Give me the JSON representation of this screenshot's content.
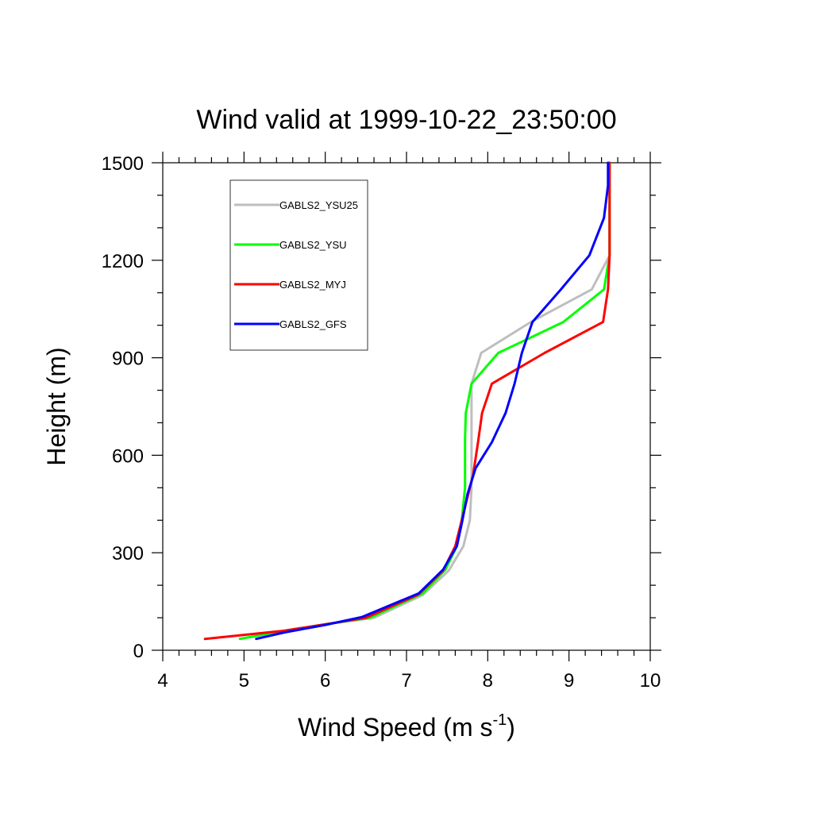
{
  "chart_data": {
    "type": "line",
    "title": "Wind valid at 1999-10-22_23:50:00",
    "xlabel": {
      "main": "Wind Speed (m s",
      "superscript": "-1",
      "close": ")"
    },
    "ylabel": "Height (m)",
    "xlim": [
      4,
      10
    ],
    "ylim": [
      0,
      1500
    ],
    "x_ticks": [
      4,
      5,
      6,
      7,
      8,
      9,
      10
    ],
    "x_tick_labels": [
      "4",
      "5",
      "6",
      "7",
      "8",
      "9",
      "10"
    ],
    "y_ticks": [
      0,
      300,
      600,
      900,
      1200,
      1500
    ],
    "y_tick_labels": [
      "0",
      "300",
      "600",
      "900",
      "1200",
      "1500"
    ],
    "grid": false,
    "legend_position": "top-left",
    "series": [
      {
        "name": "GABLS2_YSU25",
        "color": "#bebebe",
        "points": [
          [
            4.95,
            35
          ],
          [
            5.5,
            60
          ],
          [
            6.0,
            80
          ],
          [
            6.6,
            100
          ],
          [
            7.2,
            170
          ],
          [
            7.52,
            245
          ],
          [
            7.7,
            320
          ],
          [
            7.78,
            400
          ],
          [
            7.8,
            500
          ],
          [
            7.8,
            600
          ],
          [
            7.8,
            730
          ],
          [
            7.8,
            820
          ],
          [
            7.92,
            915
          ],
          [
            8.53,
            1010
          ],
          [
            9.28,
            1110
          ],
          [
            9.5,
            1215
          ],
          [
            9.5,
            1300
          ],
          [
            9.5,
            1500
          ]
        ]
      },
      {
        "name": "GABLS2_YSU",
        "color": "#00ff00",
        "points": [
          [
            4.95,
            35
          ],
          [
            5.5,
            60
          ],
          [
            6.0,
            80
          ],
          [
            6.55,
            100
          ],
          [
            7.2,
            175
          ],
          [
            7.48,
            248
          ],
          [
            7.62,
            320
          ],
          [
            7.68,
            400
          ],
          [
            7.72,
            500
          ],
          [
            7.72,
            650
          ],
          [
            7.73,
            730
          ],
          [
            7.8,
            820
          ],
          [
            8.13,
            915
          ],
          [
            8.93,
            1010
          ],
          [
            9.43,
            1110
          ],
          [
            9.5,
            1215
          ],
          [
            9.5,
            1300
          ],
          [
            9.5,
            1500
          ]
        ]
      },
      {
        "name": "GABLS2_MYJ",
        "color": "#ff0000",
        "points": [
          [
            4.52,
            35
          ],
          [
            5.5,
            60
          ],
          [
            6.0,
            80
          ],
          [
            6.5,
            100
          ],
          [
            7.15,
            172
          ],
          [
            7.45,
            245
          ],
          [
            7.6,
            320
          ],
          [
            7.7,
            420
          ],
          [
            7.82,
            540
          ],
          [
            7.88,
            640
          ],
          [
            7.93,
            730
          ],
          [
            8.05,
            820
          ],
          [
            8.7,
            915
          ],
          [
            9.42,
            1010
          ],
          [
            9.48,
            1110
          ],
          [
            9.5,
            1215
          ],
          [
            9.5,
            1300
          ],
          [
            9.5,
            1500
          ]
        ]
      },
      {
        "name": "GABLS2_GFS",
        "color": "#0000ff",
        "points": [
          [
            5.15,
            35
          ],
          [
            5.5,
            55
          ],
          [
            6.0,
            78
          ],
          [
            6.45,
            102
          ],
          [
            7.15,
            175
          ],
          [
            7.45,
            248
          ],
          [
            7.62,
            320
          ],
          [
            7.68,
            390
          ],
          [
            7.75,
            480
          ],
          [
            7.85,
            560
          ],
          [
            8.05,
            640
          ],
          [
            8.22,
            730
          ],
          [
            8.33,
            820
          ],
          [
            8.42,
            915
          ],
          [
            8.55,
            1010
          ],
          [
            8.9,
            1110
          ],
          [
            9.25,
            1215
          ],
          [
            9.43,
            1330
          ],
          [
            9.48,
            1430
          ],
          [
            9.48,
            1500
          ]
        ]
      }
    ]
  }
}
